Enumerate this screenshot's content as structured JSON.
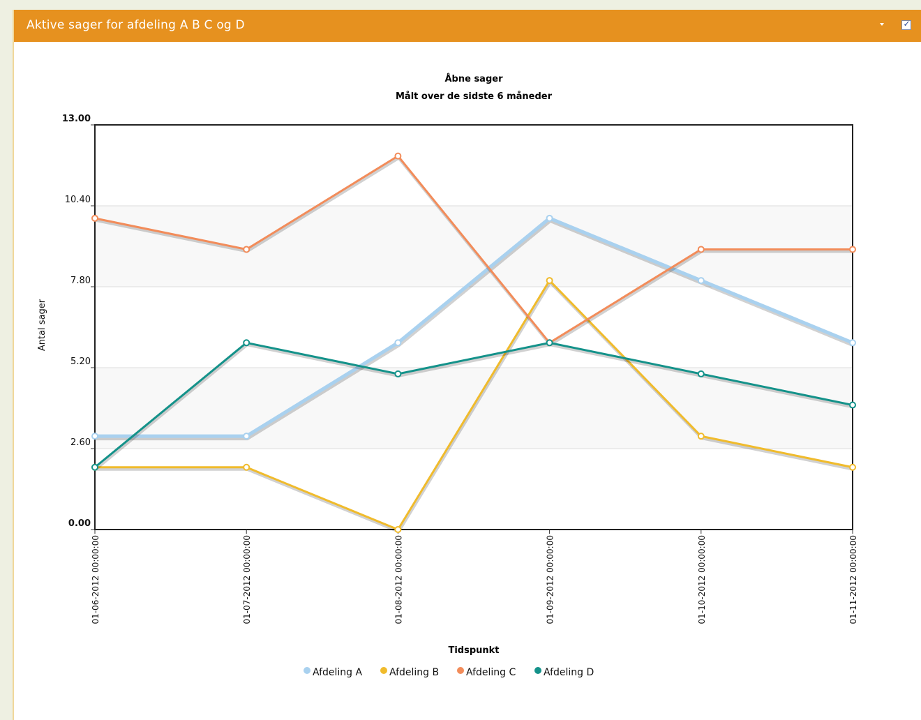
{
  "panel": {
    "title": "Aktive sager for afdeling A B C og D",
    "header_color": "#e6911f",
    "visible_checked": true
  },
  "chart_data": {
    "type": "line",
    "title": "Åbne sager",
    "subtitle": "Målt over de sidste 6 måneder",
    "xlabel": "Tidspunkt",
    "ylabel": "Antal sager",
    "ylim": [
      0,
      13
    ],
    "yticks": [
      "0.00",
      "2.60",
      "5.20",
      "7.80",
      "10.40",
      "13.00"
    ],
    "categories": [
      "01-06-2012 00:00:00",
      "01-07-2012 00:00:00",
      "01-08-2012 00:00:00",
      "01-09-2012 00:00:00",
      "01-10-2012 00:00:00",
      "01-11-2012 00:00:00"
    ],
    "grid": true,
    "legend": "bottom",
    "series": [
      {
        "name": "Afdeling A",
        "color": "#a9d1ef",
        "values": [
          3,
          3,
          6,
          10,
          8,
          6
        ]
      },
      {
        "name": "Afdeling B",
        "color": "#f0bb2c",
        "values": [
          2,
          2,
          0,
          8,
          3,
          2
        ]
      },
      {
        "name": "Afdeling C",
        "color": "#f28c5a",
        "values": [
          10,
          9,
          12,
          6,
          9,
          9
        ]
      },
      {
        "name": "Afdeling D",
        "color": "#14928a",
        "values": [
          2,
          6,
          5,
          6,
          5,
          4
        ]
      }
    ]
  }
}
